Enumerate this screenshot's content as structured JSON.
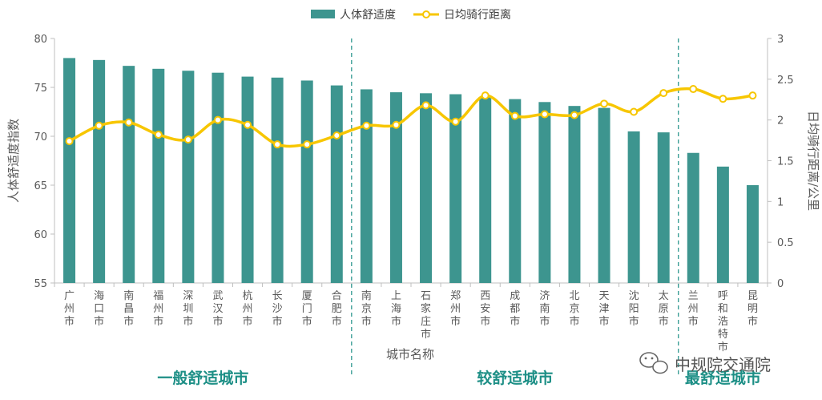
{
  "chart_data": {
    "type": "bar",
    "title": "",
    "legend": [
      "人体舒适度",
      "日均骑行距离"
    ],
    "categories": [
      "广州市",
      "海口市",
      "南昌市",
      "福州市",
      "深圳市",
      "武汉市",
      "杭州市",
      "长沙市",
      "厦门市",
      "合肥市",
      "南京市",
      "上海市",
      "石家庄市",
      "郑州市",
      "西安市",
      "成都市",
      "济南市",
      "北京市",
      "天津市",
      "沈阳市",
      "太原市",
      "兰州市",
      "呼和浩特市",
      "昆明市"
    ],
    "series": [
      {
        "name": "人体舒适度",
        "type": "bar",
        "axis": "left",
        "values": [
          78.0,
          77.8,
          77.2,
          76.9,
          76.7,
          76.5,
          76.1,
          76.0,
          75.7,
          75.2,
          74.8,
          74.5,
          74.4,
          74.3,
          74.0,
          73.8,
          73.5,
          73.1,
          72.9,
          70.5,
          70.4,
          68.3,
          66.9,
          65.0
        ]
      },
      {
        "name": "日均骑行距离",
        "type": "line",
        "axis": "right",
        "values": [
          1.74,
          1.93,
          1.97,
          1.82,
          1.76,
          2.0,
          1.94,
          1.7,
          1.7,
          1.81,
          1.93,
          1.94,
          2.18,
          1.98,
          2.3,
          2.05,
          2.07,
          2.06,
          2.2,
          2.1,
          2.33,
          2.38,
          2.26,
          2.3
        ]
      }
    ],
    "xlabel": "城市名称",
    "ylabel": "人体舒适度指数",
    "ylabel_right": "日均骑行距离/公里",
    "ylim": [
      55,
      80
    ],
    "ylim_right": [
      0,
      3
    ],
    "yticks": [
      "55",
      "60",
      "65",
      "70",
      "75",
      "80"
    ],
    "yticks_right": [
      "0",
      "0.5",
      "1",
      "1.5",
      "2",
      "2.5",
      "3"
    ],
    "groups": [
      {
        "label": "一般舒适城市",
        "start": 0,
        "end": 9
      },
      {
        "label": "较舒适城市",
        "start": 10,
        "end": 20
      },
      {
        "label": "最舒适城市",
        "start": 21,
        "end": 23
      }
    ],
    "grid": false
  },
  "colors": {
    "bar": "#3d958f",
    "line": "#f7c600",
    "group_text": "#1d8f86",
    "axis": "#bfbfbf"
  },
  "watermark": {
    "text": "中规院交通院",
    "icon": "wechat-icon"
  }
}
